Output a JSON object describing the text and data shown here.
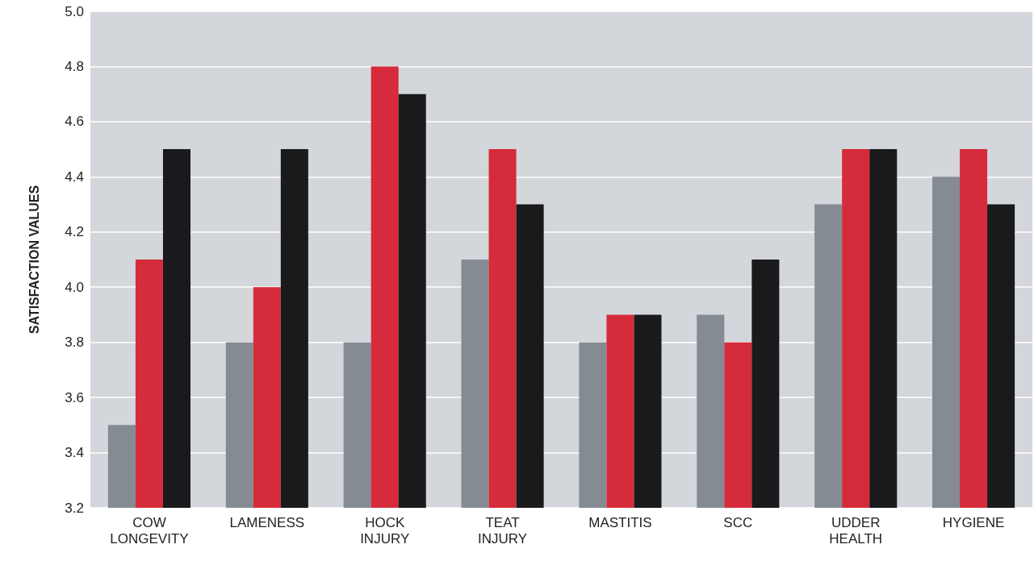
{
  "chart_data": {
    "type": "bar",
    "ylabel": "SATISFACTION VALUES",
    "categories": [
      "COW LONGEVITY",
      "LAMENESS",
      "HOCK INJURY",
      "TEAT INJURY",
      "MASTITIS",
      "SCC",
      "UDDER HEALTH",
      "HYGIENE"
    ],
    "series": [
      {
        "color": "#858b93",
        "values": [
          3.5,
          3.8,
          3.8,
          4.1,
          3.8,
          3.9,
          4.3,
          4.4
        ]
      },
      {
        "color": "#d52b3a",
        "values": [
          4.1,
          4.0,
          4.8,
          4.5,
          3.9,
          3.8,
          4.5,
          4.5
        ]
      },
      {
        "color": "#1a1a1c",
        "values": [
          4.5,
          4.5,
          4.7,
          4.3,
          3.9,
          4.1,
          4.5,
          4.3
        ]
      }
    ],
    "ylim": [
      3.2,
      5.0
    ],
    "yticks": [
      3.2,
      3.4,
      3.6,
      3.8,
      {
        "value": 4,
        "label": "4.0"
      },
      4.2,
      4.4,
      4.6,
      4.8,
      {
        "value": 5,
        "label": "5.0"
      }
    ],
    "grid": "y"
  }
}
